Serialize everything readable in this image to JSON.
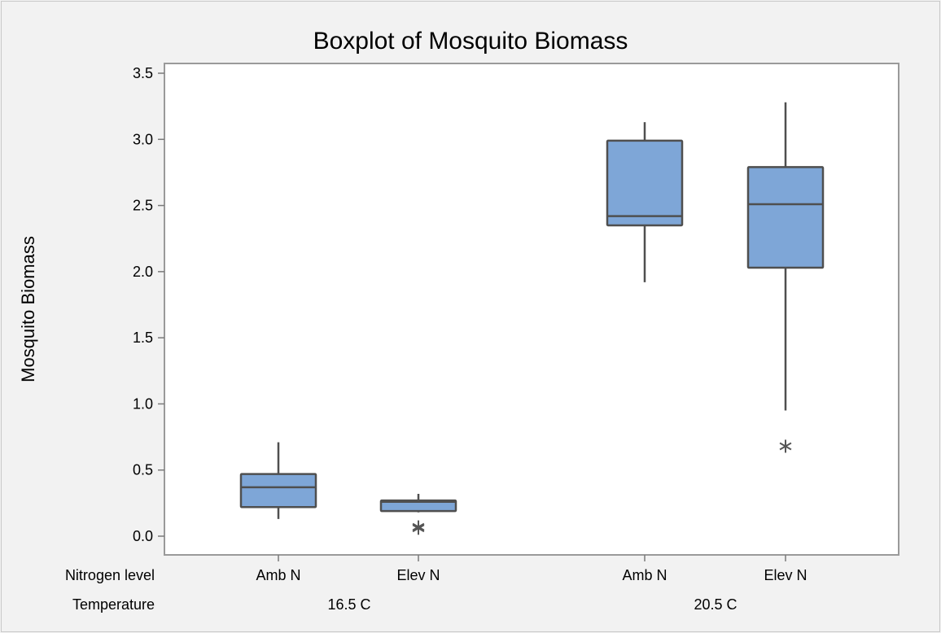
{
  "chart_data": {
    "type": "box",
    "title": "Boxplot of Mosquito Biomass",
    "ylabel": "Mosquito Biomass",
    "ylim": [
      -0.14,
      3.58
    ],
    "yticks": [
      0.0,
      0.5,
      1.0,
      1.5,
      2.0,
      2.5,
      3.0,
      3.5
    ],
    "ytick_labels": [
      "0.0",
      "0.5",
      "1.0",
      "1.5",
      "2.0",
      "2.5",
      "3.0",
      "3.5"
    ],
    "grid": false,
    "row_headers": [
      "Nitrogen level",
      "Temperature"
    ],
    "temperature_groups": [
      "16.5 C",
      "20.5 C"
    ],
    "box_color": "#7ea6d7",
    "edge_color": "#4f4f4f",
    "boxes": [
      {
        "nitrogen": "Amb N",
        "temperature": "16.5 C",
        "whisker_low": 0.13,
        "q1": 0.22,
        "median": 0.37,
        "q3": 0.47,
        "whisker_high": 0.71,
        "outliers": []
      },
      {
        "nitrogen": "Elev N",
        "temperature": "16.5 C",
        "whisker_low": 0.18,
        "q1": 0.19,
        "median": 0.26,
        "q3": 0.27,
        "whisker_high": 0.32,
        "outliers": [
          0.06,
          0.07
        ]
      },
      {
        "nitrogen": "Amb N",
        "temperature": "20.5 C",
        "whisker_low": 1.92,
        "q1": 2.35,
        "median": 2.42,
        "q3": 2.99,
        "whisker_high": 3.13,
        "outliers": []
      },
      {
        "nitrogen": "Elev N",
        "temperature": "20.5 C",
        "whisker_low": 0.95,
        "q1": 2.03,
        "median": 2.51,
        "q3": 2.79,
        "whisker_high": 3.28,
        "outliers": [
          0.68
        ]
      }
    ]
  }
}
